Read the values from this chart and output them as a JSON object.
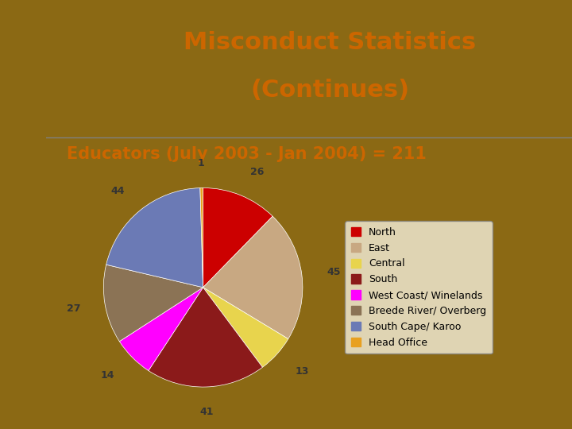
{
  "title_line1": "Misconduct Statistics",
  "title_line2": "(Continues)",
  "subtitle": "Educators (July 2003 - Jan 2004) = 211",
  "labels": [
    "North",
    "East",
    "Central",
    "South",
    "West Coast/ Winelands",
    "Breede River/ Overberg",
    "South Cape/ Karoo",
    "Head Office"
  ],
  "values": [
    26,
    45,
    13,
    41,
    14,
    27,
    44,
    1
  ],
  "colors": [
    "#cc0000",
    "#c8a882",
    "#e8d44d",
    "#8b1a1a",
    "#ff00ff",
    "#8b7355",
    "#6b7ab5",
    "#e8a020"
  ],
  "bg_color": "#f5f0dc",
  "spiral_color": "#8b6914",
  "title_color": "#cc6600",
  "subtitle_color": "#cc6600",
  "label_font_size": 9,
  "legend_font_size": 9
}
